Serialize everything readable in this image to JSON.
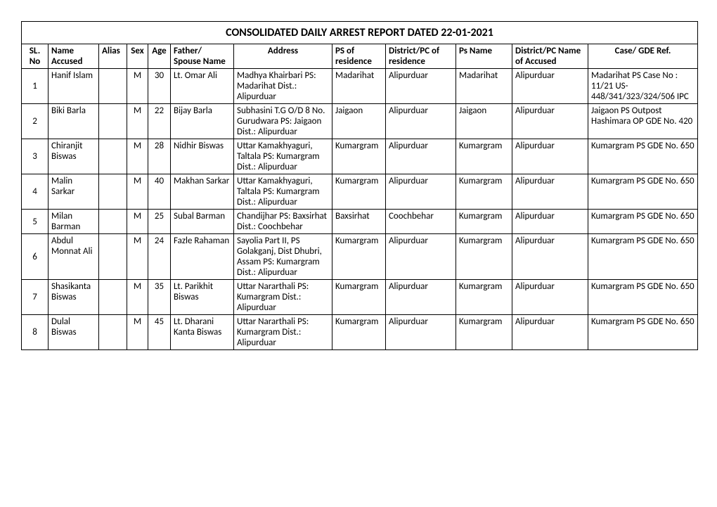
{
  "title": "CONSOLIDATED DAILY ARREST REPORT DATED 22-01-2021",
  "columns": {
    "sl": "SL. No",
    "name": "Name Accused",
    "alias": "Alias",
    "sex": "Sex",
    "age": "Age",
    "father": "Father/ Spouse Name",
    "address": "Address",
    "psres": "PS of residence",
    "distres": "District/PC of residence",
    "psname": "Ps Name",
    "distacc": "District/PC Name of Accused",
    "caseref": "Case/ GDE Ref."
  },
  "rows": [
    {
      "sl": "1",
      "name": "Hanif  Islam",
      "alias": "",
      "sex": "M",
      "age": "30",
      "father": "Lt. Omar Ali",
      "address": "Madhya Khairbari PS: Madarihat Dist.: Alipurduar",
      "psres": "Madarihat",
      "distres": "Alipurduar",
      "psname": "Madarihat",
      "distacc": "Alipurduar",
      "caseref": "Madarihat PS Case No : 11/21 US-448/341/323/324/506 IPC"
    },
    {
      "sl": "2",
      "name": "Biki Barla",
      "alias": "",
      "sex": "M",
      "age": "22",
      "father": "Bijay Barla",
      "address": "Subhasini T.G O/D 8 No. Gurudwara PS: Jaigaon Dist.: Alipurduar",
      "psres": "Jaigaon",
      "distres": "Alipurduar",
      "psname": "Jaigaon",
      "distacc": "Alipurduar",
      "caseref": "Jaigaon PS Outpost Hashimara OP GDE No. 420"
    },
    {
      "sl": "3",
      "name": "Chiranjit Biswas",
      "alias": "",
      "sex": "M",
      "age": "28",
      "father": "Nidhir Biswas",
      "address": "Uttar Kamakhyaguri, Taltala PS: Kumargram Dist.: Alipurduar",
      "psres": "Kumargram",
      "distres": "Alipurduar",
      "psname": "Kumargram",
      "distacc": "Alipurduar",
      "caseref": "Kumargram PS  GDE No. 650"
    },
    {
      "sl": "4",
      "name": "Malin  Sarkar",
      "alias": "",
      "sex": "M",
      "age": "40",
      "father": "Makhan Sarkar",
      "address": "Uttar Kamakhyaguri, Taltala PS: Kumargram Dist.: Alipurduar",
      "psres": "Kumargram",
      "distres": "Alipurduar",
      "psname": "Kumargram",
      "distacc": "Alipurduar",
      "caseref": "Kumargram PS  GDE No. 650"
    },
    {
      "sl": "5",
      "name": "Milan Barman",
      "alias": "",
      "sex": "M",
      "age": "25",
      "father": "Subal Barman",
      "address": "Chandijhar PS: Baxsirhat Dist.: Coochbehar",
      "psres": "Baxsirhat",
      "distres": "Coochbehar",
      "psname": "Kumargram",
      "distacc": "Alipurduar",
      "caseref": "Kumargram PS  GDE No. 650"
    },
    {
      "sl": "6",
      "name": "Abdul Monnat Ali",
      "alias": "",
      "sex": "M",
      "age": "24",
      "father": "Fazle Rahaman",
      "address": "Sayolia Part II, PS Golakganj, Dist Dhubri, Assam PS: Kumargram Dist.: Alipurduar",
      "psres": "Kumargram",
      "distres": "Alipurduar",
      "psname": "Kumargram",
      "distacc": "Alipurduar",
      "caseref": "Kumargram PS  GDE No. 650"
    },
    {
      "sl": "7",
      "name": "Shasikanta Biswas",
      "alias": "",
      "sex": "M",
      "age": "35",
      "father": "Lt. Parikhit Biswas",
      "address": "Uttar Nararthali PS: Kumargram Dist.: Alipurduar",
      "psres": "Kumargram",
      "distres": "Alipurduar",
      "psname": "Kumargram",
      "distacc": "Alipurduar",
      "caseref": "Kumargram PS  GDE No. 650"
    },
    {
      "sl": "8",
      "name": "Dulal  Biswas",
      "alias": "",
      "sex": "M",
      "age": "45",
      "father": "Lt. Dharani Kanta Biswas",
      "address": "Uttar Nararthali PS: Kumargram Dist.: Alipurduar",
      "psres": "Kumargram",
      "distres": "Alipurduar",
      "psname": "Kumargram",
      "distacc": "Alipurduar",
      "caseref": "Kumargram PS  GDE No. 650"
    }
  ]
}
